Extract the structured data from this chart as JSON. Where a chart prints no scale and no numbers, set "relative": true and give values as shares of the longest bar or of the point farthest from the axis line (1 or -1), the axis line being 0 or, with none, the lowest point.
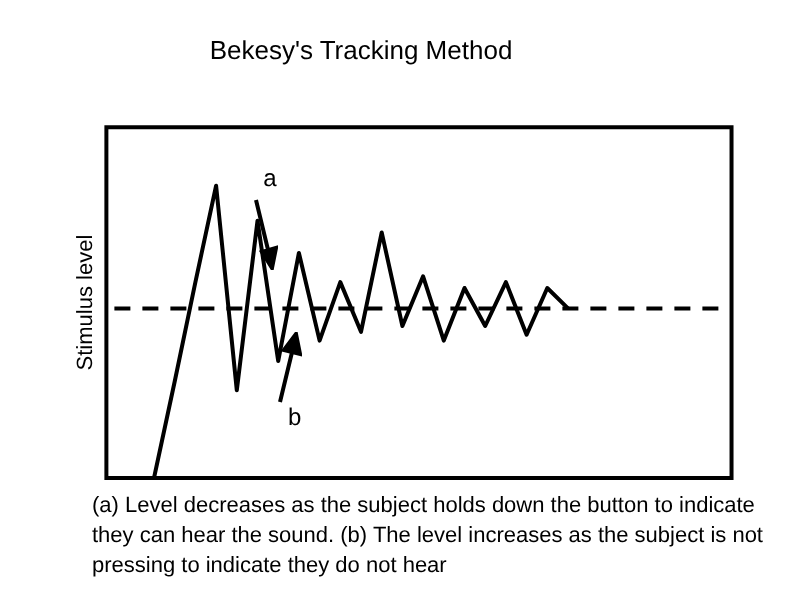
{
  "chart_data": {
    "type": "line",
    "title": "Bekesy's Tracking Method",
    "ylabel": "Stimulus level",
    "relative": true,
    "grid": false,
    "legend": false,
    "marker": "none",
    "line_style": "solid",
    "categories": [
      null,
      null,
      null,
      null,
      null,
      null,
      null,
      null,
      null,
      null,
      null,
      null,
      null,
      null,
      null,
      null,
      null,
      null,
      null,
      null,
      null
    ],
    "series": [
      {
        "color": "#000000",
        "values": [
          0,
          0.33,
          0.67,
          1,
          0.3,
          0.88,
          0.4,
          0.77,
          0.47,
          0.67,
          0.5,
          0.84,
          0.52,
          0.69,
          0.47,
          0.65,
          0.52,
          0.67,
          0.49,
          0.65,
          0.58
        ]
      }
    ],
    "ref_lines": [
      {
        "axis": "y",
        "value": 0.58,
        "color": "#000000",
        "line_style": "dashed"
      }
    ],
    "annotations": [
      "a",
      "b",
      "(a) Level decreases as the subject holds down the button to indicate they can hear the sound. (b) The level increases as the subject is not pressing to indicate they do not hear"
    ]
  }
}
